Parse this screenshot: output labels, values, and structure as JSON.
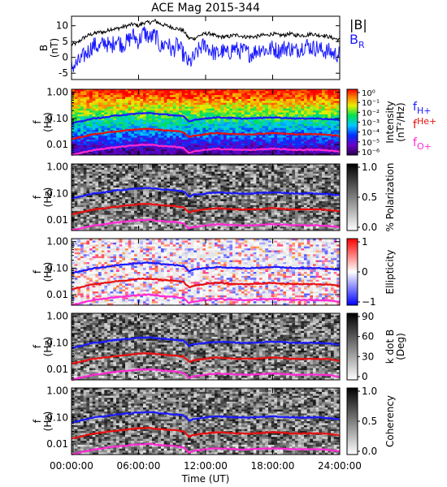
{
  "chart_data": [
    {
      "type": "line",
      "title": "ACE Mag 2015-344",
      "ylabel": "B",
      "yunit": "(nT)",
      "ylim": [
        -7,
        13
      ],
      "yticks": [
        "10",
        "5",
        "0",
        "-5"
      ],
      "ytick_values": [
        10,
        5,
        0,
        -5
      ],
      "xlim": [
        0,
        24
      ],
      "series": [
        {
          "name": "|B|",
          "color": "#000000",
          "x": [
            0,
            0.5,
            1,
            1.5,
            2,
            2.5,
            3,
            3.5,
            4,
            4.5,
            5,
            5.5,
            6,
            6.5,
            7,
            7.5,
            8,
            8.5,
            9,
            9.5,
            10,
            10.5,
            11,
            11.5,
            12,
            12.5,
            13,
            13.5,
            14,
            14.5,
            15,
            15.5,
            16,
            16.5,
            17,
            17.5,
            18,
            18.5,
            19,
            19.5,
            20,
            20.5,
            21,
            21.5,
            22,
            22.5,
            23,
            23.5,
            24
          ],
          "values": [
            4,
            4.5,
            6,
            7,
            7.5,
            8,
            8,
            9,
            9,
            9.5,
            10,
            10.5,
            10,
            11,
            11,
            11.5,
            10.5,
            10,
            9.5,
            9,
            8.5,
            6,
            6,
            7,
            7.5,
            7.5,
            6.5,
            6.5,
            6.5,
            7,
            7,
            6.5,
            6.5,
            6.5,
            7,
            7,
            7.5,
            7,
            7,
            7.5,
            7,
            7,
            7,
            7.5,
            7,
            7,
            6.5,
            6,
            5.5
          ]
        },
        {
          "name": "B_R",
          "color": "#1a1aff",
          "x": [
            0,
            0.5,
            1,
            1.5,
            2,
            2.5,
            3,
            3.5,
            4,
            4.5,
            5,
            5.5,
            6,
            6.5,
            7,
            7.5,
            8,
            8.5,
            9,
            9.5,
            10,
            10.5,
            11,
            11.5,
            12,
            12.5,
            13,
            13.5,
            14,
            14.5,
            15,
            15.5,
            16,
            16.5,
            17,
            17.5,
            18,
            18.5,
            19,
            19.5,
            20,
            20.5,
            21,
            21.5,
            22,
            22.5,
            23,
            23.5,
            24
          ],
          "values": [
            -3,
            -2,
            0,
            2,
            4,
            3,
            5,
            3,
            6,
            4,
            5,
            7,
            5,
            8,
            6,
            7,
            3,
            5,
            2,
            4,
            1,
            -2,
            0,
            3,
            4,
            2,
            1,
            2,
            1,
            3,
            2,
            2,
            1,
            2,
            3,
            2,
            3,
            2,
            3,
            3,
            2,
            3,
            4,
            3,
            3,
            2,
            2,
            1,
            1
          ]
        }
      ]
    },
    {
      "type": "heatmap",
      "ylabel": "f",
      "yunit": "(Hz)",
      "yscale": "log",
      "ylim": [
        0.004,
        1.3
      ],
      "yticks": [
        "1.00",
        "0.10",
        "0.01"
      ],
      "ytick_values": [
        1,
        0.1,
        0.01
      ],
      "xlim": [
        0,
        24
      ],
      "colorbar": {
        "label": "Intensity",
        "unit": "(nT²/Hz)",
        "scale": "rainbow",
        "ticks": [
          "10⁰",
          "10⁻¹",
          "10⁻²",
          "10⁻³",
          "10⁻⁴",
          "10⁻⁵",
          "10⁻⁶"
        ]
      }
    },
    {
      "type": "heatmap",
      "ylabel": "f",
      "yunit": "(Hz)",
      "yscale": "log",
      "ylim": [
        0.004,
        1.3
      ],
      "yticks": [
        "1.00",
        "0.10",
        "0.01"
      ],
      "ytick_values": [
        1,
        0.1,
        0.01
      ],
      "xlim": [
        0,
        24
      ],
      "colorbar": {
        "label": "% Polarization",
        "scale": "gray",
        "ticks": [
          "1.0",
          "0.5",
          "0.0"
        ]
      }
    },
    {
      "type": "heatmap",
      "ylabel": "f",
      "yunit": "(Hz)",
      "yscale": "log",
      "ylim": [
        0.004,
        1.3
      ],
      "yticks": [
        "1.00",
        "0.10",
        "0.01"
      ],
      "ytick_values": [
        1,
        0.1,
        0.01
      ],
      "xlim": [
        0,
        24
      ],
      "colorbar": {
        "label": "Ellipticity",
        "scale": "bwr",
        "ticks": [
          "1",
          "0",
          "−1"
        ]
      }
    },
    {
      "type": "heatmap",
      "ylabel": "f",
      "yunit": "(Hz)",
      "yscale": "log",
      "ylim": [
        0.004,
        1.3
      ],
      "yticks": [
        "1.00",
        "0.10",
        "0.01"
      ],
      "ytick_values": [
        1,
        0.1,
        0.01
      ],
      "xlim": [
        0,
        24
      ],
      "colorbar": {
        "label": "k dot B",
        "unit": "(Deg)",
        "scale": "gray",
        "ticks": [
          "90",
          "60",
          "30",
          "0"
        ]
      }
    },
    {
      "type": "heatmap",
      "ylabel": "f",
      "yunit": "(Hz)",
      "yscale": "log",
      "ylim": [
        0.004,
        1.3
      ],
      "yticks": [
        "1.00",
        "0.10",
        "0.01"
      ],
      "ytick_values": [
        1,
        0.1,
        0.01
      ],
      "xlim": [
        0,
        24
      ],
      "colorbar": {
        "label": "Coherency",
        "scale": "gray",
        "ticks": [
          "1.0",
          "0.5",
          "0.0"
        ]
      }
    }
  ],
  "gyrofrequencies": [
    {
      "name": "f_H+",
      "main": "f",
      "sub": "H+",
      "color": "#1a1aff",
      "x": [
        0,
        1,
        2,
        3,
        4,
        5,
        6,
        7,
        8,
        9,
        10,
        10.5,
        11,
        12,
        13,
        14,
        15,
        16,
        17,
        18,
        19,
        20,
        21,
        22,
        23,
        24
      ],
      "values": [
        0.065,
        0.08,
        0.1,
        0.11,
        0.13,
        0.14,
        0.155,
        0.16,
        0.145,
        0.135,
        0.12,
        0.075,
        0.09,
        0.1,
        0.11,
        0.105,
        0.1,
        0.1,
        0.105,
        0.11,
        0.105,
        0.1,
        0.1,
        0.1,
        0.095,
        0.085
      ]
    },
    {
      "name": "f_He+",
      "main": "f",
      "sub": "He+",
      "color": "#e81010",
      "x": [
        0,
        1,
        2,
        3,
        4,
        5,
        6,
        7,
        8,
        9,
        10,
        10.5,
        11,
        12,
        13,
        14,
        15,
        16,
        17,
        18,
        19,
        20,
        21,
        22,
        23,
        24
      ],
      "values": [
        0.016,
        0.02,
        0.025,
        0.028,
        0.032,
        0.035,
        0.039,
        0.04,
        0.036,
        0.034,
        0.03,
        0.019,
        0.022,
        0.025,
        0.028,
        0.026,
        0.025,
        0.025,
        0.026,
        0.028,
        0.026,
        0.025,
        0.025,
        0.025,
        0.024,
        0.021
      ]
    },
    {
      "name": "f_O+",
      "main": "f",
      "sub": "O+",
      "color": "#ff2ad4",
      "x": [
        0,
        1,
        2,
        3,
        4,
        5,
        6,
        7,
        8,
        9,
        10,
        10.5,
        11,
        12,
        13,
        14,
        15,
        16,
        17,
        18,
        19,
        20,
        21,
        22,
        23,
        24
      ],
      "values": [
        0.004,
        0.005,
        0.0062,
        0.007,
        0.008,
        0.0088,
        0.0097,
        0.01,
        0.009,
        0.0085,
        0.0075,
        0.0047,
        0.0055,
        0.0063,
        0.0069,
        0.0066,
        0.0063,
        0.0063,
        0.0066,
        0.0069,
        0.0066,
        0.0063,
        0.0063,
        0.0063,
        0.006,
        0.0053
      ]
    }
  ],
  "legend_top": [
    {
      "main": "|B|",
      "sub": "",
      "color": "#000000"
    },
    {
      "main": "B",
      "sub": "R",
      "color": "#1a1aff"
    }
  ],
  "xaxis": {
    "label": "Time (UT)",
    "ticks": [
      "00:00:00",
      "06:00:00",
      "12:00:00",
      "18:00:00",
      "24:00:00"
    ],
    "tick_values": [
      0,
      6,
      12,
      18,
      24
    ]
  }
}
